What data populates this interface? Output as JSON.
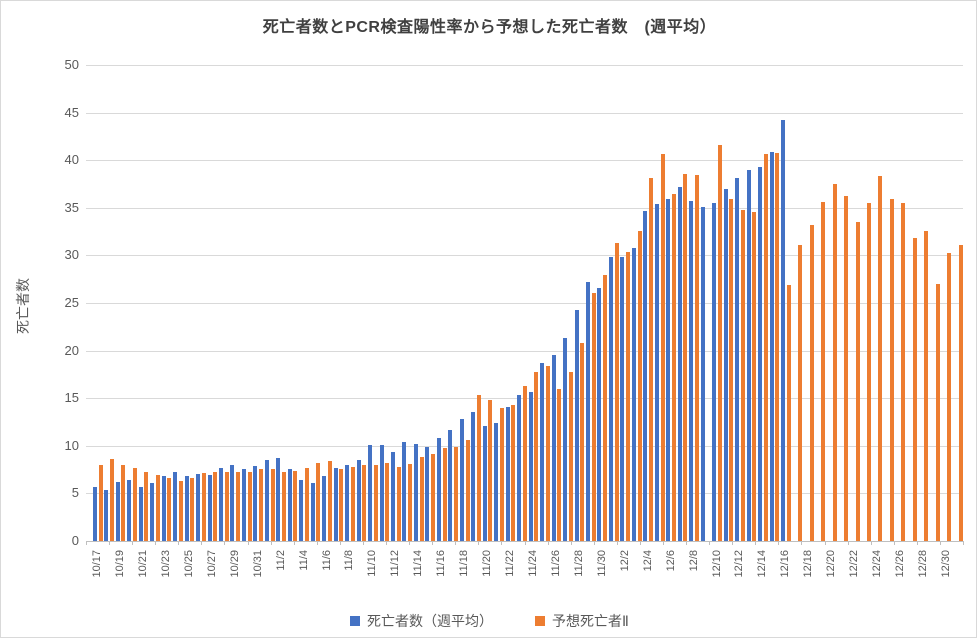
{
  "title": "死亡者数とPCR検査陽性率から予想した死亡者数　(週平均）",
  "y_axis": {
    "title": "死亡者数",
    "ticks": [
      0,
      5,
      10,
      15,
      20,
      25,
      30,
      35,
      40,
      45,
      50
    ]
  },
  "legend": {
    "items": [
      {
        "label": "死亡者数（週平均）",
        "color": "#4472C4"
      },
      {
        "label": "予想死亡者Ⅱ",
        "color": "#ED7D31"
      }
    ]
  },
  "chart_data": {
    "type": "bar",
    "title": "死亡者数とPCR検査陽性率から予想した死亡者数　(週平均）",
    "xlabel": "",
    "ylabel": "死亡者数",
    "ylim": [
      0,
      50
    ],
    "grid": true,
    "legend_position": "bottom",
    "colors": {
      "series1": "#4472C4",
      "series2": "#ED7D31",
      "gridline": "#d9d9d9",
      "axis": "#bfbfbf",
      "tick_text": "#595959"
    },
    "categories": [
      "10/17",
      "10/18",
      "10/19",
      "10/20",
      "10/21",
      "10/22",
      "10/23",
      "10/24",
      "10/25",
      "10/26",
      "10/27",
      "10/28",
      "10/29",
      "10/30",
      "10/31",
      "11/1",
      "11/2",
      "11/3",
      "11/4",
      "11/5",
      "11/6",
      "11/7",
      "11/8",
      "11/9",
      "11/10",
      "11/11",
      "11/12",
      "11/13",
      "11/14",
      "11/15",
      "11/16",
      "11/17",
      "11/18",
      "11/19",
      "11/20",
      "11/21",
      "11/22",
      "11/23",
      "11/24",
      "11/25",
      "11/26",
      "11/27",
      "11/28",
      "11/29",
      "11/30",
      "12/1",
      "12/2",
      "12/3",
      "12/4",
      "12/5",
      "12/6",
      "12/7",
      "12/8",
      "12/9",
      "12/10",
      "12/11",
      "12/12",
      "12/13",
      "12/14",
      "12/15",
      "12/16",
      "12/17",
      "12/18",
      "12/19",
      "12/20",
      "12/21",
      "12/22",
      "12/23",
      "12/24",
      "12/25",
      "12/26",
      "12/27",
      "12/28",
      "12/29",
      "12/30",
      "12/31"
    ],
    "x_tick_labels": [
      "10/17",
      "10/19",
      "10/21",
      "10/23",
      "10/25",
      "10/27",
      "10/29",
      "10/31",
      "11/2",
      "11/4",
      "11/6",
      "11/8",
      "11/10",
      "11/12",
      "11/14",
      "11/16",
      "11/18",
      "11/20",
      "11/22",
      "11/24",
      "11/26",
      "11/28",
      "11/30",
      "12/2",
      "12/4",
      "12/6",
      "12/8",
      "12/10",
      "12/12",
      "12/14",
      "12/16",
      "12/18",
      "12/20",
      "12/22",
      "12/24",
      "12/26",
      "12/28",
      "12/30"
    ],
    "series": [
      {
        "name": "死亡者数（週平均）",
        "color": "#4472C4",
        "values": [
          5.7,
          5.4,
          6.2,
          6.4,
          5.7,
          6.1,
          6.8,
          7.2,
          6.8,
          7.0,
          6.9,
          7.7,
          8.0,
          7.6,
          7.9,
          8.5,
          8.7,
          7.6,
          6.4,
          6.1,
          6.8,
          7.7,
          8.0,
          8.5,
          10.1,
          10.1,
          9.4,
          10.4,
          10.2,
          9.9,
          10.8,
          11.7,
          12.8,
          13.6,
          12.1,
          12.4,
          14.1,
          15.3,
          15.7,
          18.7,
          19.5,
          21.3,
          24.3,
          27.2,
          26.6,
          29.8,
          29.8,
          30.8,
          34.7,
          35.4,
          35.9,
          37.2,
          35.7,
          35.1,
          35.5,
          37.0,
          38.1,
          39.0,
          39.3,
          40.9,
          44.2,
          null,
          null,
          null,
          null,
          null,
          null,
          null,
          null,
          null,
          null,
          null,
          null,
          null,
          null,
          null
        ]
      },
      {
        "name": "予想死亡者Ⅱ",
        "color": "#ED7D31",
        "values": [
          8.0,
          8.6,
          8.0,
          7.7,
          7.3,
          6.9,
          6.6,
          6.3,
          6.6,
          7.1,
          7.3,
          7.2,
          7.3,
          7.3,
          7.6,
          7.6,
          7.3,
          7.4,
          7.7,
          8.2,
          8.4,
          7.6,
          7.8,
          8.0,
          8.0,
          8.2,
          7.8,
          8.1,
          8.8,
          9.1,
          9.8,
          9.9,
          10.6,
          15.3,
          14.8,
          14.0,
          14.3,
          16.3,
          17.8,
          18.4,
          16.0,
          17.8,
          20.8,
          26.0,
          27.9,
          31.3,
          30.4,
          32.6,
          38.1,
          40.6,
          36.4,
          38.5,
          38.4,
          0,
          41.6,
          35.9,
          34.8,
          34.6,
          40.7,
          40.8,
          26.9,
          31.1,
          33.2,
          35.6,
          37.5,
          36.2,
          33.5,
          35.5,
          38.3,
          35.9,
          35.5,
          31.8,
          32.6,
          27.0,
          30.2,
          31.1
        ]
      }
    ]
  }
}
